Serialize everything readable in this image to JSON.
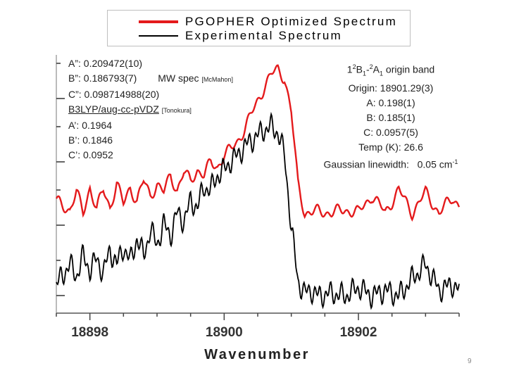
{
  "chart_data": {
    "type": "line",
    "xlabel": "Wavenumber",
    "x_ticks": [
      "18898",
      "18900",
      "18902"
    ],
    "x_tick_values": [
      18898,
      18900,
      18902
    ],
    "xlim": [
      18897.5,
      18903.5
    ],
    "series": [
      {
        "name": "PGOPHER Optimized Spectrum",
        "color": "#e41a1c",
        "x": [
          18897.5,
          18897.7,
          18897.8,
          18897.9,
          18898.0,
          18898.1,
          18898.2,
          18898.3,
          18898.4,
          18898.5,
          18898.6,
          18898.7,
          18898.8,
          18898.9,
          18899.0,
          18899.1,
          18899.2,
          18899.3,
          18899.4,
          18899.5,
          18899.6,
          18899.7,
          18899.8,
          18899.9,
          18900.0,
          18900.1,
          18900.2,
          18900.3,
          18900.4,
          18900.5,
          18900.6,
          18900.7,
          18900.8,
          18900.9,
          18901.0,
          18901.1,
          18901.2,
          18901.3,
          18901.4,
          18901.6,
          18901.8,
          18902.0,
          18902.2,
          18902.4,
          18902.6,
          18902.8,
          18903.0,
          18903.2,
          18903.4,
          18903.5
        ],
        "values": [
          0.78,
          0.72,
          0.84,
          0.7,
          0.88,
          0.72,
          0.86,
          0.74,
          0.9,
          0.76,
          0.88,
          0.78,
          0.92,
          0.82,
          0.9,
          0.84,
          0.96,
          0.86,
          0.98,
          0.92,
          1.0,
          0.96,
          1.05,
          1.02,
          1.1,
          1.14,
          1.2,
          1.28,
          1.38,
          1.48,
          1.58,
          1.66,
          1.7,
          1.64,
          1.4,
          0.9,
          0.7,
          0.7,
          0.71,
          0.7,
          0.72,
          0.7,
          0.82,
          0.7,
          0.86,
          0.7,
          0.84,
          0.7,
          0.8,
          0.76
        ]
      },
      {
        "name": "Experimental Spectrum",
        "color": "#000000",
        "x": [
          18897.5,
          18897.7,
          18897.8,
          18897.9,
          18898.0,
          18898.1,
          18898.2,
          18898.3,
          18898.4,
          18898.5,
          18898.6,
          18898.7,
          18898.8,
          18898.9,
          18899.0,
          18899.1,
          18899.2,
          18899.3,
          18899.4,
          18899.5,
          18899.6,
          18899.7,
          18899.8,
          18899.9,
          18900.0,
          18900.1,
          18900.2,
          18900.3,
          18900.4,
          18900.5,
          18900.6,
          18900.7,
          18900.8,
          18900.9,
          18901.0,
          18901.1,
          18901.2,
          18901.3,
          18901.4,
          18901.6,
          18901.8,
          18902.0,
          18902.2,
          18902.4,
          18902.6,
          18902.8,
          18903.0,
          18903.2,
          18903.4,
          18903.5
        ],
        "values": [
          0.2,
          0.34,
          0.26,
          0.4,
          0.3,
          0.38,
          0.28,
          0.44,
          0.34,
          0.46,
          0.36,
          0.52,
          0.4,
          0.58,
          0.48,
          0.62,
          0.54,
          0.7,
          0.64,
          0.78,
          0.74,
          0.88,
          0.86,
          0.96,
          1.0,
          1.06,
          1.1,
          1.16,
          1.2,
          1.24,
          1.28,
          1.3,
          1.26,
          1.1,
          0.6,
          0.22,
          0.14,
          0.16,
          0.12,
          0.14,
          0.12,
          0.18,
          0.12,
          0.16,
          0.12,
          0.24,
          0.34,
          0.16,
          0.2,
          0.16
        ]
      }
    ],
    "annotations": {
      "left": {
        "a_double": "A”: 0.209472(10)",
        "b_double": "B”: 0.186793(7)",
        "mw_spec": "MW spec",
        "mcmahon": "[McMahon]",
        "c_double": "C”: 0.098714988(20)",
        "method": "B3LYP/aug-cc-pVDZ",
        "tonokura": "[Tonokura]",
        "a_single": "A’: 0.1964",
        "b_single": "B’: 0.1846",
        "c_single": "C’: 0.0952"
      },
      "right": {
        "band_1": "1",
        "band_2": "2",
        "band_3": "B",
        "band_4": "1",
        "band_5": "-",
        "band_6": "2",
        "band_7": "A",
        "band_8": "1",
        "band_9": " origin band",
        "origin": "Origin: 18901.29(3)",
        "a": "A: 0.198(1)",
        "b": "B: 0.185(1)",
        "c": "C: 0.0957(5)",
        "temp": "Temp (K): 26.6",
        "linewidth_label": "Gaussian linewidth:",
        "linewidth_value": "0.05 cm",
        "linewidth_exp": "-1"
      }
    },
    "grid": false,
    "legend_position": "top"
  },
  "page_number": "9"
}
